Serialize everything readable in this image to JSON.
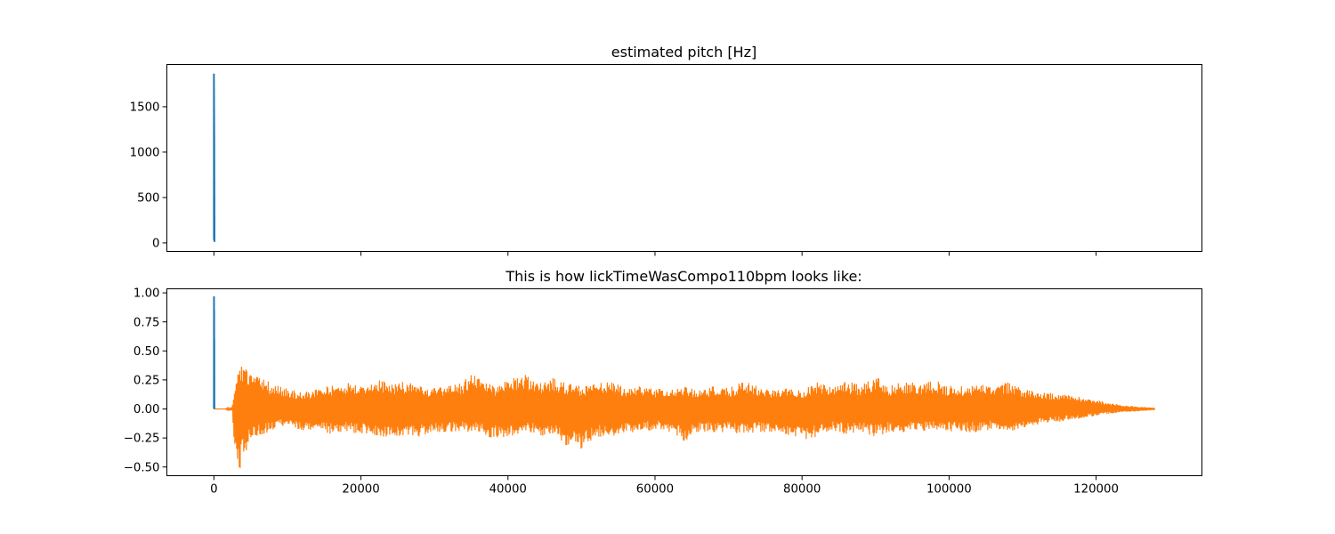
{
  "chart_data": [
    {
      "type": "line",
      "title": "estimated pitch [Hz]",
      "xlim": [
        -6400,
        134400
      ],
      "ylim": [
        -94,
        1965
      ],
      "xticks": [
        0,
        20000,
        40000,
        60000,
        80000,
        100000,
        120000
      ],
      "xtick_labels_shown": false,
      "yticks": [
        0,
        500,
        1000,
        1500
      ],
      "ytick_labels": [
        "0",
        "500",
        "1000",
        "1500"
      ],
      "series": [
        {
          "color": "#1f77b4",
          "x": [
            0,
            3,
            6,
            9,
            12,
            15,
            18,
            21,
            24,
            27,
            30,
            33,
            36,
            39,
            42,
            45,
            48,
            51,
            54,
            57,
            60,
            63,
            66,
            69,
            72,
            75
          ],
          "values": [
            1865,
            40,
            1780,
            120,
            1700,
            60,
            1620,
            200,
            1500,
            30,
            1420,
            300,
            1300,
            80,
            1200,
            400,
            1100,
            50,
            900,
            250,
            700,
            20,
            500,
            150,
            300,
            10
          ]
        }
      ]
    },
    {
      "type": "line",
      "title": "This is how lickTimeWasCompo110bpm looks like:",
      "xlim": [
        -6400,
        134400
      ],
      "ylim": [
        -0.575,
        1.035
      ],
      "xticks": [
        0,
        20000,
        40000,
        60000,
        80000,
        100000,
        120000
      ],
      "xtick_labels": [
        "0",
        "20000",
        "40000",
        "60000",
        "80000",
        "100000",
        "120000"
      ],
      "yticks": [
        -0.5,
        -0.25,
        0.0,
        0.25,
        0.5,
        0.75,
        1.0
      ],
      "ytick_labels": [
        "−0.50",
        "−0.25",
        "0.00",
        "0.25",
        "0.50",
        "0.75",
        "1.00"
      ],
      "series": [
        {
          "color": "#1f77b4",
          "x": [
            0,
            10,
            20,
            30,
            40,
            50,
            60,
            70
          ],
          "values": [
            0.0,
            0.97,
            0.1,
            0.85,
            0.0,
            0.6,
            0.05,
            0.0
          ]
        },
        {
          "color": "#ff7f0e",
          "envelope_x": [
            0,
            1500,
            2500,
            2800,
            3100,
            3600,
            4000,
            5000,
            6000,
            8000,
            10000,
            12000,
            14000,
            16000,
            18000,
            20000,
            22000,
            24000,
            26000,
            28000,
            30000,
            32000,
            34000,
            35000,
            36000,
            38000,
            40000,
            42000,
            43000,
            44000,
            46000,
            48000,
            50000,
            52000,
            54000,
            56000,
            58000,
            60000,
            62000,
            64000,
            66000,
            68000,
            70000,
            72000,
            74000,
            76000,
            78000,
            80000,
            82000,
            84000,
            86000,
            88000,
            90000,
            92000,
            94000,
            96000,
            98000,
            100000,
            102000,
            104000,
            106000,
            108000,
            110000,
            112000,
            114000,
            116000,
            118000,
            120000,
            122000,
            124000,
            126000,
            128000
          ],
          "upper": [
            0.0,
            0.0,
            0.02,
            0.2,
            0.35,
            0.39,
            0.41,
            0.3,
            0.28,
            0.22,
            0.18,
            0.14,
            0.18,
            0.2,
            0.24,
            0.2,
            0.27,
            0.22,
            0.24,
            0.2,
            0.18,
            0.2,
            0.24,
            0.31,
            0.28,
            0.2,
            0.25,
            0.32,
            0.28,
            0.22,
            0.27,
            0.22,
            0.2,
            0.23,
            0.24,
            0.18,
            0.2,
            0.18,
            0.17,
            0.2,
            0.17,
            0.2,
            0.18,
            0.24,
            0.2,
            0.17,
            0.2,
            0.15,
            0.24,
            0.2,
            0.24,
            0.21,
            0.28,
            0.2,
            0.24,
            0.22,
            0.25,
            0.2,
            0.2,
            0.22,
            0.18,
            0.24,
            0.18,
            0.15,
            0.14,
            0.12,
            0.1,
            0.08,
            0.05,
            0.03,
            0.02,
            0.01
          ],
          "lower": [
            0.0,
            0.0,
            -0.02,
            -0.35,
            -0.58,
            -0.55,
            -0.42,
            -0.28,
            -0.24,
            -0.18,
            -0.14,
            -0.2,
            -0.18,
            -0.22,
            -0.2,
            -0.22,
            -0.24,
            -0.24,
            -0.27,
            -0.24,
            -0.22,
            -0.2,
            -0.18,
            -0.22,
            -0.2,
            -0.26,
            -0.24,
            -0.22,
            -0.2,
            -0.24,
            -0.22,
            -0.32,
            -0.35,
            -0.24,
            -0.24,
            -0.2,
            -0.2,
            -0.18,
            -0.2,
            -0.28,
            -0.2,
            -0.2,
            -0.2,
            -0.22,
            -0.2,
            -0.2,
            -0.22,
            -0.27,
            -0.24,
            -0.18,
            -0.22,
            -0.2,
            -0.24,
            -0.2,
            -0.2,
            -0.2,
            -0.18,
            -0.2,
            -0.2,
            -0.2,
            -0.18,
            -0.2,
            -0.16,
            -0.14,
            -0.12,
            -0.1,
            -0.08,
            -0.06,
            -0.04,
            -0.03,
            -0.02,
            -0.01
          ]
        }
      ]
    }
  ]
}
